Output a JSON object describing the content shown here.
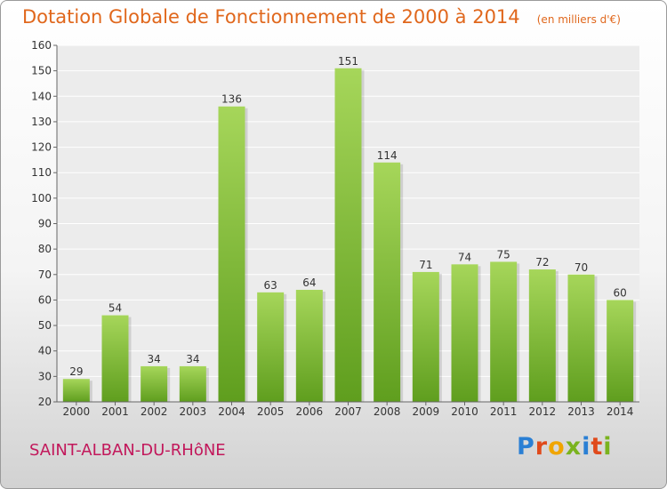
{
  "header": {
    "title": "Dotation Globale de Fonctionnement de 2000 à 2014",
    "subtitle": "(en milliers d'€)"
  },
  "footer": {
    "commune": "SAINT-ALBAN-DU-RHôNE",
    "brand": "Proxiti"
  },
  "colors": {
    "bar_light": "#a6d65a",
    "bar_dark": "#5f9e1e",
    "title": "#e0671c",
    "commune": "#c2185b"
  },
  "chart_data": {
    "type": "bar",
    "categories": [
      "2000",
      "2001",
      "2002",
      "2003",
      "2004",
      "2005",
      "2006",
      "2007",
      "2008",
      "2009",
      "2010",
      "2011",
      "2012",
      "2013",
      "2014"
    ],
    "values": [
      29,
      54,
      34,
      34,
      136,
      63,
      64,
      151,
      114,
      71,
      74,
      75,
      72,
      70,
      60
    ],
    "title": "Dotation Globale de Fonctionnement de 2000 à 2014",
    "subtitle": "(en milliers d'€)",
    "ylim": [
      20,
      160
    ],
    "yticks": [
      20,
      30,
      40,
      50,
      60,
      70,
      80,
      90,
      100,
      110,
      120,
      130,
      140,
      150,
      160
    ],
    "grid": true
  }
}
